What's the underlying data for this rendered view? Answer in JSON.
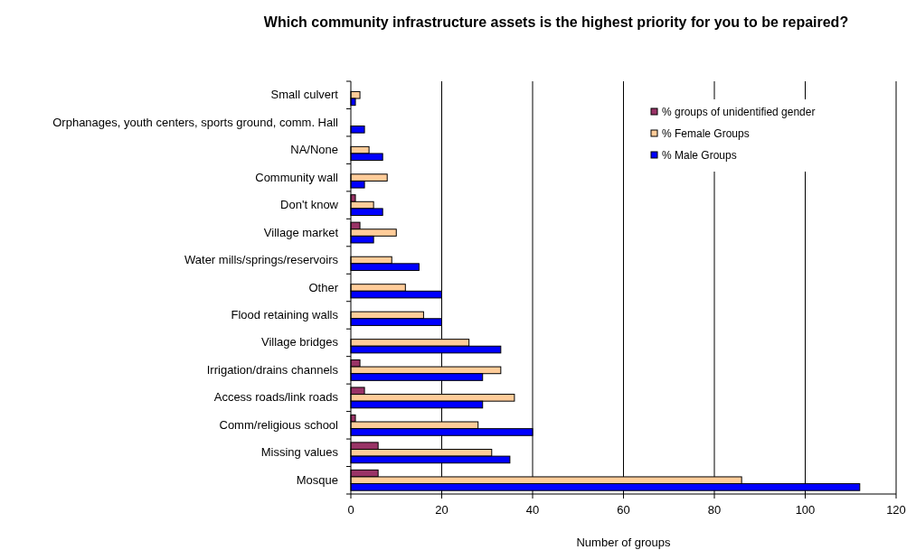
{
  "chart_data": {
    "type": "bar",
    "orientation": "horizontal",
    "title": "Which community infrastructure assets is the highest priority for you to be repaired?",
    "xlabel": "Number of groups",
    "categories": [
      "Small culvert",
      "Orphanages, youth centers, sports ground, comm. Hall",
      "NA/None",
      "Community wall",
      "Don't know",
      "Village market",
      "Water mills/springs/reservoirs",
      "Other",
      "Flood retaining walls",
      "Village bridges",
      "Irrigation/drains channels",
      "Access roads/link roads",
      "Comm/religious school",
      "Missing values",
      "Mosque"
    ],
    "series": [
      {
        "name": "% groups of unidentified gender",
        "color": "#993366",
        "values": [
          null,
          null,
          null,
          null,
          1,
          2,
          null,
          null,
          null,
          null,
          2,
          3,
          1,
          6,
          6
        ]
      },
      {
        "name": "% Female Groups",
        "color": "#ffcc99",
        "values": [
          2,
          null,
          4,
          8,
          5,
          10,
          9,
          12,
          16,
          26,
          33,
          36,
          28,
          31,
          86
        ]
      },
      {
        "name": "% Male Groups",
        "color": "#0000ff",
        "values": [
          1,
          3,
          7,
          3,
          7,
          5,
          15,
          20,
          20,
          33,
          29,
          29,
          40,
          35,
          112
        ]
      }
    ],
    "xlim": [
      0,
      120
    ],
    "xticks": [
      0,
      20,
      40,
      60,
      80,
      100,
      120
    ],
    "grid": "x",
    "legend": "top right"
  }
}
